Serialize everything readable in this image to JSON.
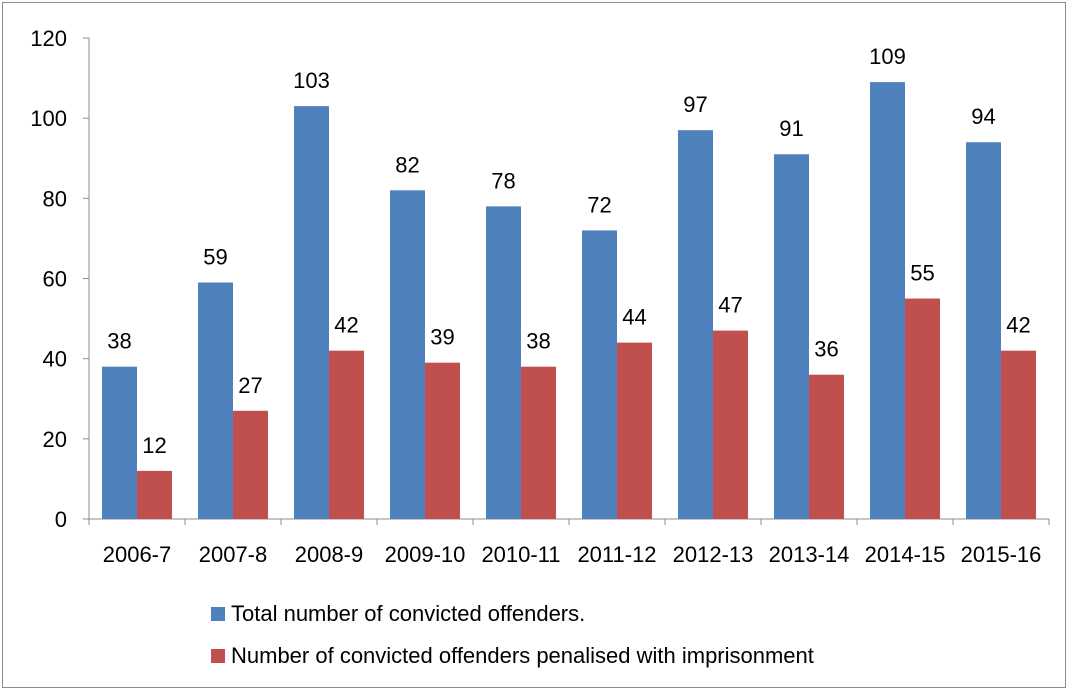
{
  "chart_data": {
    "type": "bar",
    "categories": [
      "2006-7",
      "2007-8",
      "2008-9",
      "2009-10",
      "2010-11",
      "2011-12",
      "2012-13",
      "2013-14",
      "2014-15",
      "2015-16"
    ],
    "series": [
      {
        "name": "Total number of convicted offenders.",
        "color": "#4F81BD",
        "values": [
          38,
          59,
          103,
          82,
          78,
          72,
          97,
          91,
          109,
          94
        ]
      },
      {
        "name": "Number of convicted offenders penalised with imprisonment",
        "color": "#C0504D",
        "values": [
          12,
          27,
          42,
          39,
          38,
          44,
          47,
          36,
          55,
          42
        ]
      }
    ],
    "y_ticks": [
      0,
      20,
      40,
      60,
      80,
      100,
      120
    ],
    "ylim": [
      0,
      120
    ],
    "grid": false,
    "data_labels": true,
    "legend_position": "bottom"
  }
}
